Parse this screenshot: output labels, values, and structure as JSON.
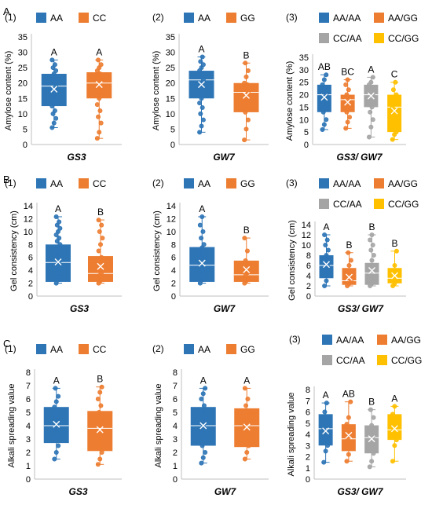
{
  "figure": {
    "row_labels": [
      "A",
      "B",
      "C"
    ],
    "colors": {
      "AA": "#2E75B6",
      "CC": "#ED7D31",
      "GG": "#ED7D31",
      "AA/AA": "#2E75B6",
      "AA/GG": "#ED7D31",
      "CC/AA": "#A5A5A5",
      "CC/GG": "#FFC000"
    }
  },
  "chart_data": [
    {
      "type": "box",
      "panel": "(1)",
      "xlabel": "GS3",
      "ylabel": "Amylose content (%)",
      "ylim": [
        0,
        35
      ],
      "yticks": [
        0,
        5,
        10,
        15,
        20,
        25,
        30,
        35
      ],
      "groups": [
        {
          "name": "AA",
          "min": 5.5,
          "q1": 12.5,
          "median": 19,
          "mean": 18,
          "q3": 23,
          "max": 27.5,
          "letter": "A",
          "points": [
            5.5,
            7,
            8.5,
            10,
            11,
            12.5,
            13.5,
            14.5,
            15.5,
            16.5,
            17.5,
            18,
            19,
            20,
            21,
            22,
            23,
            24,
            25,
            26,
            27.5
          ]
        },
        {
          "name": "CC",
          "min": 2,
          "q1": 15,
          "median": 20,
          "mean": 19.5,
          "q3": 23.5,
          "max": 27.5,
          "letter": "A",
          "points": [
            2,
            4,
            7,
            9,
            11,
            13,
            15,
            16,
            17,
            18,
            19,
            20,
            21,
            22,
            23,
            24,
            25,
            26,
            27.5
          ]
        }
      ]
    },
    {
      "type": "box",
      "panel": "(2)",
      "xlabel": "GW7",
      "ylabel": "Amylose content (%)",
      "ylim": [
        0,
        35
      ],
      "yticks": [
        0,
        5,
        10,
        15,
        20,
        25,
        30,
        35
      ],
      "groups": [
        {
          "name": "AA",
          "min": 4,
          "q1": 15,
          "median": 21,
          "mean": 19.5,
          "q3": 24,
          "max": 28.5,
          "letter": "A",
          "points": [
            4,
            6,
            8,
            10,
            12,
            13.5,
            15,
            16,
            17,
            18,
            19,
            20,
            21,
            22,
            23,
            24,
            25,
            26,
            27,
            28.5
          ]
        },
        {
          "name": "GG",
          "min": 1.5,
          "q1": 10.5,
          "median": 17,
          "mean": 16,
          "q3": 20,
          "max": 26.5,
          "letter": "B",
          "points": [
            1.5,
            5,
            8,
            10.5,
            12,
            14,
            15.5,
            17,
            18,
            19.5,
            20,
            22,
            24,
            26.5
          ]
        }
      ]
    },
    {
      "type": "box",
      "panel": "(3)",
      "xlabel": "GS3/ GW7",
      "ylabel": "Amylose content (%)",
      "ylim": [
        0,
        35
      ],
      "yticks": [
        0,
        5,
        10,
        15,
        20,
        25,
        30,
        35
      ],
      "groups": [
        {
          "name": "AA/AA",
          "min": 6,
          "q1": 13,
          "median": 20,
          "mean": 19,
          "q3": 24,
          "max": 28,
          "letter": "AB",
          "points": [
            6,
            8,
            10,
            13,
            15,
            17,
            19,
            20,
            21,
            23,
            24,
            26,
            28
          ]
        },
        {
          "name": "AA/GG",
          "min": 6.5,
          "q1": 13,
          "median": 18,
          "mean": 17,
          "q3": 20,
          "max": 26,
          "letter": "BC",
          "points": [
            6.5,
            9,
            11,
            13,
            15,
            17,
            18,
            19,
            20,
            22,
            24,
            26
          ]
        },
        {
          "name": "CC/AA",
          "min": 3,
          "q1": 15,
          "median": 20,
          "mean": 19.5,
          "q3": 24,
          "max": 27,
          "letter": "A",
          "points": [
            3,
            7,
            10,
            13,
            15,
            17,
            19,
            20,
            21,
            22,
            24,
            25,
            27
          ]
        },
        {
          "name": "CC/GG",
          "min": 2,
          "q1": 5,
          "median": 15,
          "mean": 13.5,
          "q3": 20,
          "max": 25,
          "letter": "C",
          "points": [
            2,
            4,
            5,
            8,
            12,
            15,
            17,
            20,
            22,
            25
          ]
        }
      ]
    },
    {
      "type": "box",
      "panel": "(1)",
      "xlabel": "GS3",
      "ylabel": "Gel consistency (cm)",
      "ylim": [
        0,
        14
      ],
      "yticks": [
        0,
        2,
        4,
        6,
        8,
        10,
        12,
        14
      ],
      "groups": [
        {
          "name": "AA",
          "min": 2,
          "q1": 2.2,
          "median": 5.2,
          "mean": 5.3,
          "q3": 8,
          "max": 12.3,
          "letter": "A",
          "points": [
            2,
            2.5,
            3,
            3.5,
            4,
            4.5,
            5,
            5.5,
            6,
            6.5,
            7,
            7.5,
            8,
            8.5,
            9,
            9.5,
            10,
            10.5,
            11,
            11.5,
            12.3
          ]
        },
        {
          "name": "CC",
          "min": 2,
          "q1": 2.2,
          "median": 3.5,
          "mean": 4.6,
          "q3": 6.2,
          "max": 11.8,
          "letter": "B",
          "points": [
            2,
            2.4,
            2.8,
            3.2,
            3.6,
            4,
            4.5,
            5,
            5.5,
            6,
            7,
            8,
            9,
            10,
            11,
            11.8
          ]
        }
      ]
    },
    {
      "type": "box",
      "panel": "(2)",
      "xlabel": "GW7",
      "ylabel": "Gel consistency (cm)",
      "ylim": [
        0,
        14
      ],
      "yticks": [
        0,
        2,
        4,
        6,
        8,
        10,
        12,
        14
      ],
      "groups": [
        {
          "name": "AA",
          "min": 2,
          "q1": 2.2,
          "median": 4.8,
          "mean": 5.1,
          "q3": 7.6,
          "max": 12.3,
          "letter": "A",
          "points": [
            2,
            2.5,
            3,
            3.5,
            4,
            4.5,
            5,
            5.5,
            6,
            6.5,
            7,
            7.5,
            8,
            9,
            10,
            11,
            12.3
          ]
        },
        {
          "name": "GG",
          "min": 2,
          "q1": 2.2,
          "median": 3.3,
          "mean": 4.1,
          "q3": 5.5,
          "max": 9,
          "letter": "B",
          "points": [
            2,
            2.4,
            2.8,
            3.2,
            3.6,
            4,
            4.5,
            5,
            5.5,
            7,
            9
          ]
        }
      ]
    },
    {
      "type": "box",
      "panel": "(3)",
      "xlabel": "GS3/ GW7",
      "ylabel": "Gel consistency (cm)",
      "ylim": [
        0,
        14
      ],
      "yticks": [
        0,
        2,
        4,
        6,
        8,
        10,
        12,
        14
      ],
      "groups": [
        {
          "name": "AA/AA",
          "min": 2,
          "q1": 3.5,
          "median": 6,
          "mean": 6.2,
          "q3": 8,
          "max": 12,
          "letter": "A",
          "points": [
            2,
            3,
            4,
            5,
            6,
            7,
            8,
            9,
            10,
            11,
            12
          ]
        },
        {
          "name": "AA/GG",
          "min": 2,
          "q1": 2.2,
          "median": 3,
          "mean": 3.7,
          "q3": 5.5,
          "max": 8.5,
          "letter": "B",
          "points": [
            2,
            2.5,
            3,
            3.5,
            4,
            5,
            6,
            7,
            8.5
          ]
        },
        {
          "name": "CC/AA",
          "min": 2,
          "q1": 2.2,
          "median": 4.5,
          "mean": 5,
          "q3": 6.5,
          "max": 12,
          "letter": "B",
          "points": [
            2,
            2.5,
            3,
            4,
            5,
            6,
            7,
            8,
            9,
            10,
            11,
            12
          ]
        },
        {
          "name": "CC/GG",
          "min": 2,
          "q1": 2.5,
          "median": 3.5,
          "mean": 4,
          "q3": 5.5,
          "max": 8.8,
          "letter": "B",
          "points": [
            2,
            2.5,
            3,
            3.5,
            4,
            5,
            6,
            8.8
          ]
        }
      ]
    },
    {
      "type": "box",
      "panel": "(1)",
      "xlabel": "GS3",
      "ylabel": "Alkali spreading value",
      "ylim": [
        0,
        8
      ],
      "yticks": [
        0,
        1,
        2,
        3,
        4,
        5,
        6,
        7,
        8
      ],
      "groups": [
        {
          "name": "AA",
          "min": 1.5,
          "q1": 2.7,
          "median": 4,
          "mean": 4.1,
          "q3": 5.4,
          "max": 6.8,
          "letter": "A",
          "points": [
            1.5,
            2,
            2.5,
            3,
            3.3,
            3.7,
            4,
            4.3,
            4.7,
            5,
            5.4,
            5.8,
            6.2,
            6.8
          ]
        },
        {
          "name": "CC",
          "min": 1.1,
          "q1": 2.1,
          "median": 3.8,
          "mean": 3.7,
          "q3": 5.1,
          "max": 6.9,
          "letter": "B",
          "points": [
            1.1,
            1.5,
            2,
            2.5,
            3,
            3.5,
            4,
            4.5,
            5,
            5.5,
            6,
            6.5,
            6.9
          ]
        }
      ]
    },
    {
      "type": "box",
      "panel": "(2)",
      "xlabel": "GW7",
      "ylabel": "Alkali spreading value",
      "ylim": [
        0,
        8
      ],
      "yticks": [
        0,
        1,
        2,
        3,
        4,
        5,
        6,
        7,
        8
      ],
      "groups": [
        {
          "name": "AA",
          "min": 1.2,
          "q1": 2.5,
          "median": 4,
          "mean": 4,
          "q3": 5.4,
          "max": 6.8,
          "letter": "A",
          "points": [
            1.2,
            1.6,
            2,
            2.5,
            3,
            3.5,
            4,
            4.5,
            5,
            5.5,
            6,
            6.4,
            6.8
          ]
        },
        {
          "name": "GG",
          "min": 1.5,
          "q1": 2.4,
          "median": 4,
          "mean": 3.9,
          "q3": 5.3,
          "max": 6.8,
          "letter": "A",
          "points": [
            1.5,
            2,
            2.5,
            3,
            3.5,
            4,
            4.5,
            5,
            5.5,
            6,
            6.8
          ]
        }
      ]
    },
    {
      "type": "box",
      "panel": "(3)",
      "xlabel": "GS3/ GW7",
      "ylabel": "Alkali spreading value",
      "ylim": [
        0,
        8
      ],
      "yticks": [
        0,
        1,
        2,
        3,
        4,
        5,
        6,
        7,
        8
      ],
      "groups": [
        {
          "name": "AA/AA",
          "min": 1.5,
          "q1": 3,
          "median": 4.5,
          "mean": 4.3,
          "q3": 5.8,
          "max": 6.8,
          "letter": "A",
          "points": [
            1.5,
            2.5,
            3,
            3.5,
            4,
            4.5,
            5,
            5.5,
            6,
            6.8
          ]
        },
        {
          "name": "AA/GG",
          "min": 1.6,
          "q1": 2.5,
          "median": 3.6,
          "mean": 3.9,
          "q3": 4.9,
          "max": 6.9,
          "letter": "AB",
          "points": [
            1.6,
            2.2,
            3,
            3.6,
            4.2,
            4.9,
            5.5,
            6.9
          ]
        },
        {
          "name": "CC/AA",
          "min": 1.1,
          "q1": 2.3,
          "median": 3.7,
          "mean": 3.6,
          "q3": 4.8,
          "max": 6.2,
          "letter": "B",
          "points": [
            1.1,
            1.6,
            2.3,
            3,
            3.7,
            4.2,
            4.8,
            5.5,
            6.2
          ]
        },
        {
          "name": "CC/GG",
          "min": 1.6,
          "q1": 3.5,
          "median": 4.4,
          "mean": 4.5,
          "q3": 5.8,
          "max": 6.5,
          "letter": "A",
          "points": [
            1.6,
            3,
            3.5,
            4.4,
            5,
            5.8,
            6.5
          ]
        }
      ]
    }
  ]
}
